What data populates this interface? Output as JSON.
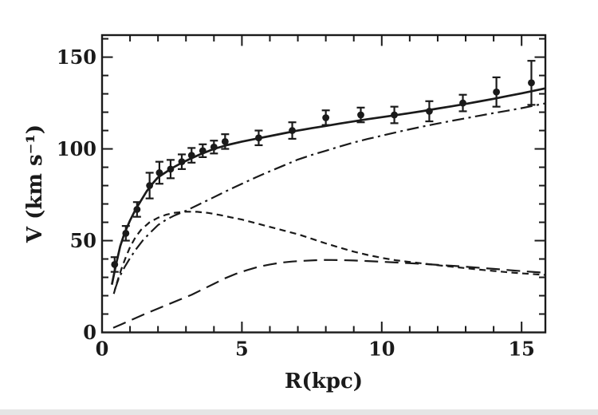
{
  "page": {
    "background": "#ffffff",
    "bottom_strip_color": "#e5e5e5"
  },
  "chart_data": {
    "type": "line",
    "title": "",
    "xlabel": "R(kpc)",
    "ylabel": "V (km s⁻¹)",
    "xlim": [
      0,
      15.85
    ],
    "ylim": [
      0,
      162
    ],
    "x_major_ticks": [
      0,
      5,
      10,
      15
    ],
    "x_minor_step": 1,
    "y_major_ticks": [
      0,
      50,
      100,
      150
    ],
    "y_minor_step": 10,
    "grid": false,
    "legend_position": "none",
    "ink_color": "#1a1a1a",
    "observed_points": {
      "marker": "filled-circle-with-error-bars",
      "r": [
        0.45,
        0.85,
        1.25,
        1.7,
        2.05,
        2.45,
        2.85,
        3.2,
        3.6,
        4.0,
        4.4,
        5.6,
        6.8,
        8.0,
        9.25,
        10.45,
        11.7,
        12.9,
        14.1,
        15.35
      ],
      "v": [
        37,
        54,
        67,
        80,
        87,
        89,
        93,
        96.5,
        99,
        101,
        104,
        106,
        110,
        117,
        118.5,
        118.5,
        120.5,
        125,
        131,
        136
      ],
      "err": [
        4,
        4,
        4,
        7,
        6,
        5,
        4,
        4,
        3.5,
        3.5,
        4,
        4,
        4.5,
        4,
        4,
        4.5,
        5.5,
        4.5,
        8,
        12
      ]
    },
    "series": [
      {
        "style": "solid",
        "x": [
          0.35,
          0.5,
          0.65,
          0.8,
          1,
          1.2,
          1.4,
          1.6,
          1.8,
          2,
          2.2,
          2.5,
          2.8,
          3.1,
          3.5,
          4,
          4.5,
          5,
          5.5,
          6,
          6.5,
          7,
          7.5,
          8,
          8.5,
          9,
          9.5,
          10,
          10.5,
          11,
          11.5,
          12,
          12.5,
          13,
          13.5,
          14,
          14.5,
          15,
          15.85
        ],
        "y": [
          26,
          37,
          47,
          54,
          61,
          67,
          72,
          77,
          81,
          84.5,
          86.5,
          89.5,
          92,
          94.2,
          97,
          100,
          102.2,
          104,
          105.5,
          107,
          108.5,
          110,
          111.3,
          112.5,
          113.8,
          115,
          116.2,
          117.3,
          118.4,
          119.5,
          120.7,
          122,
          123.2,
          124.5,
          125.9,
          127.3,
          128.8,
          130.3,
          133
        ]
      },
      {
        "style": "dash-dot",
        "x": [
          0.45,
          0.6,
          0.8,
          1,
          1.2,
          1.45,
          1.7,
          2,
          2.3,
          2.6,
          3,
          3.4,
          3.8,
          4.2,
          4.6,
          5,
          5.5,
          6,
          6.5,
          7,
          7.5,
          8,
          8.5,
          9,
          9.5,
          10,
          10.5,
          11,
          11.5,
          12,
          12.5,
          13,
          13.5,
          14,
          14.5,
          15,
          15.85
        ],
        "y": [
          23,
          29.5,
          35.5,
          40.5,
          45,
          50,
          54,
          58.5,
          61.5,
          63.8,
          66.3,
          69.3,
          72.2,
          75.2,
          78.2,
          81,
          84.5,
          87.8,
          91,
          94.2,
          96.7,
          99,
          101.3,
          103.5,
          105.4,
          107.2,
          109,
          110.7,
          112.3,
          113.8,
          115.3,
          116.7,
          118.1,
          119.5,
          120.8,
          122.2,
          124.8
        ]
      },
      {
        "style": "short-dash",
        "x": [
          0.42,
          0.55,
          0.7,
          0.85,
          1,
          1.2,
          1.4,
          1.7,
          2,
          2.3,
          2.6,
          3,
          3.4,
          3.8,
          4.2,
          4.6,
          5,
          5.5,
          6,
          6.5,
          7,
          7.5,
          8,
          8.5,
          9,
          9.5,
          10,
          10.5,
          11,
          11.5,
          12,
          12.5,
          13,
          13.5,
          14,
          14.5,
          15,
          15.85
        ],
        "y": [
          21,
          28,
          35,
          41,
          46.5,
          52,
          56,
          60,
          62.5,
          64.2,
          65.2,
          65.8,
          65.7,
          65.1,
          64,
          62.7,
          61.5,
          59.5,
          57.5,
          55.5,
          53.5,
          51,
          48.5,
          46.2,
          44,
          42.2,
          40.6,
          39.3,
          38.4,
          37.5,
          36.6,
          35.8,
          35,
          34.2,
          33.5,
          32.8,
          32.2,
          31.3
        ]
      },
      {
        "style": "long-dash",
        "x": [
          0.4,
          0.7,
          1,
          1.3,
          1.6,
          2,
          2.4,
          2.8,
          3.2,
          3.6,
          4,
          4.4,
          4.8,
          5.2,
          5.6,
          6,
          6.4,
          6.8,
          7.2,
          7.6,
          8,
          8.5,
          9,
          9.5,
          10,
          10.5,
          11,
          11.5,
          12,
          12.5,
          13,
          13.5,
          14,
          14.5,
          15,
          15.85
        ],
        "y": [
          2.5,
          4.5,
          6.5,
          8.5,
          10.5,
          13,
          15.5,
          18,
          20.5,
          23.5,
          26.5,
          29.5,
          32,
          34,
          35.8,
          37,
          38,
          38.6,
          39,
          39.3,
          39.5,
          39.4,
          39.2,
          38.9,
          38.5,
          38.1,
          37.7,
          37.3,
          36.8,
          36.3,
          35.8,
          35.2,
          34.6,
          34,
          33.4,
          32.5
        ]
      }
    ]
  }
}
